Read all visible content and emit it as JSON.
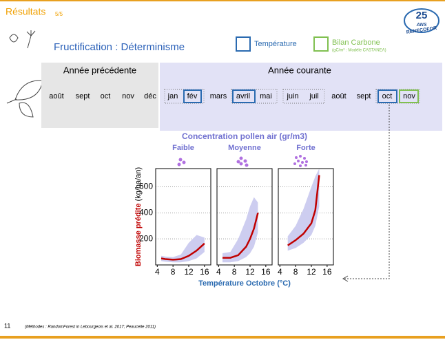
{
  "header": {
    "title": "Résultats",
    "page": "5/5",
    "subtitle": "Fructification : Déterminisme",
    "logo_number": "25",
    "logo_word": "ANS",
    "logo_brand": "RENECOFOR"
  },
  "legend": {
    "temperature": "Température",
    "carbon": "Bilan Carbone",
    "carbon_note": "(gC/m² : Modèle CASTANEA)"
  },
  "timeline": {
    "previous": "Année précédente",
    "current": "Année courante",
    "previous_months": [
      "août",
      "sept",
      "oct",
      "nov",
      "déc"
    ],
    "current_months": [
      "jan",
      "fév",
      "mars",
      "avril",
      "mai",
      "juin",
      "juil",
      "août",
      "sept",
      "oct",
      "nov"
    ]
  },
  "figure": {
    "title": "Concentration pollen air (gr/m3)",
    "ylabel_main": "Biomasse prédite",
    "ylabel_unit": "(kg/ha/an)",
    "xlabel": "Température Octobre (°C)"
  },
  "chart_data": [
    {
      "type": "line",
      "title": "Faible",
      "x": [
        5,
        6,
        8,
        10,
        12,
        14,
        16
      ],
      "values": [
        50,
        45,
        40,
        45,
        70,
        110,
        165
      ],
      "lower": [
        30,
        25,
        20,
        20,
        30,
        50,
        100
      ],
      "upper": [
        70,
        65,
        60,
        80,
        170,
        230,
        210
      ],
      "color": "#c00000",
      "band_color": "#cdcdf0",
      "xlim": [
        3.6,
        17.6
      ],
      "xticks": [
        4,
        8,
        12,
        16
      ],
      "ylim": [
        0,
        740
      ],
      "yticks": [
        200,
        400,
        600
      ]
    },
    {
      "type": "line",
      "title": "Moyenne",
      "x": [
        5,
        7,
        9,
        11,
        12,
        13,
        14
      ],
      "values": [
        55,
        55,
        75,
        140,
        200,
        280,
        400
      ],
      "lower": [
        20,
        20,
        30,
        60,
        90,
        140,
        250
      ],
      "upper": [
        90,
        100,
        200,
        350,
        450,
        520,
        480
      ],
      "color": "#c00000",
      "band_color": "#cdcdf0",
      "xlim": [
        3.6,
        17.6
      ],
      "xticks": [
        4,
        8,
        12,
        16
      ],
      "ylim": [
        0,
        740
      ],
      "yticks": [
        200,
        400,
        600
      ]
    },
    {
      "type": "line",
      "title": "Forte",
      "x": [
        6,
        8,
        10,
        12,
        13,
        14
      ],
      "values": [
        150,
        190,
        240,
        320,
        420,
        690
      ],
      "lower": [
        110,
        130,
        170,
        230,
        300,
        450
      ],
      "upper": [
        220,
        300,
        430,
        600,
        680,
        740
      ],
      "color": "#c00000",
      "band_color": "#cdcdf0",
      "xlim": [
        3.6,
        17.6
      ],
      "xticks": [
        4,
        8,
        12,
        16
      ],
      "ylim": [
        0,
        740
      ],
      "yticks": [
        200,
        400,
        600
      ]
    }
  ],
  "footer": {
    "number": "11",
    "note": "(Méthodes : RandomForest in Lebourgeois et al. 2017; Peaucelle 2011)"
  }
}
